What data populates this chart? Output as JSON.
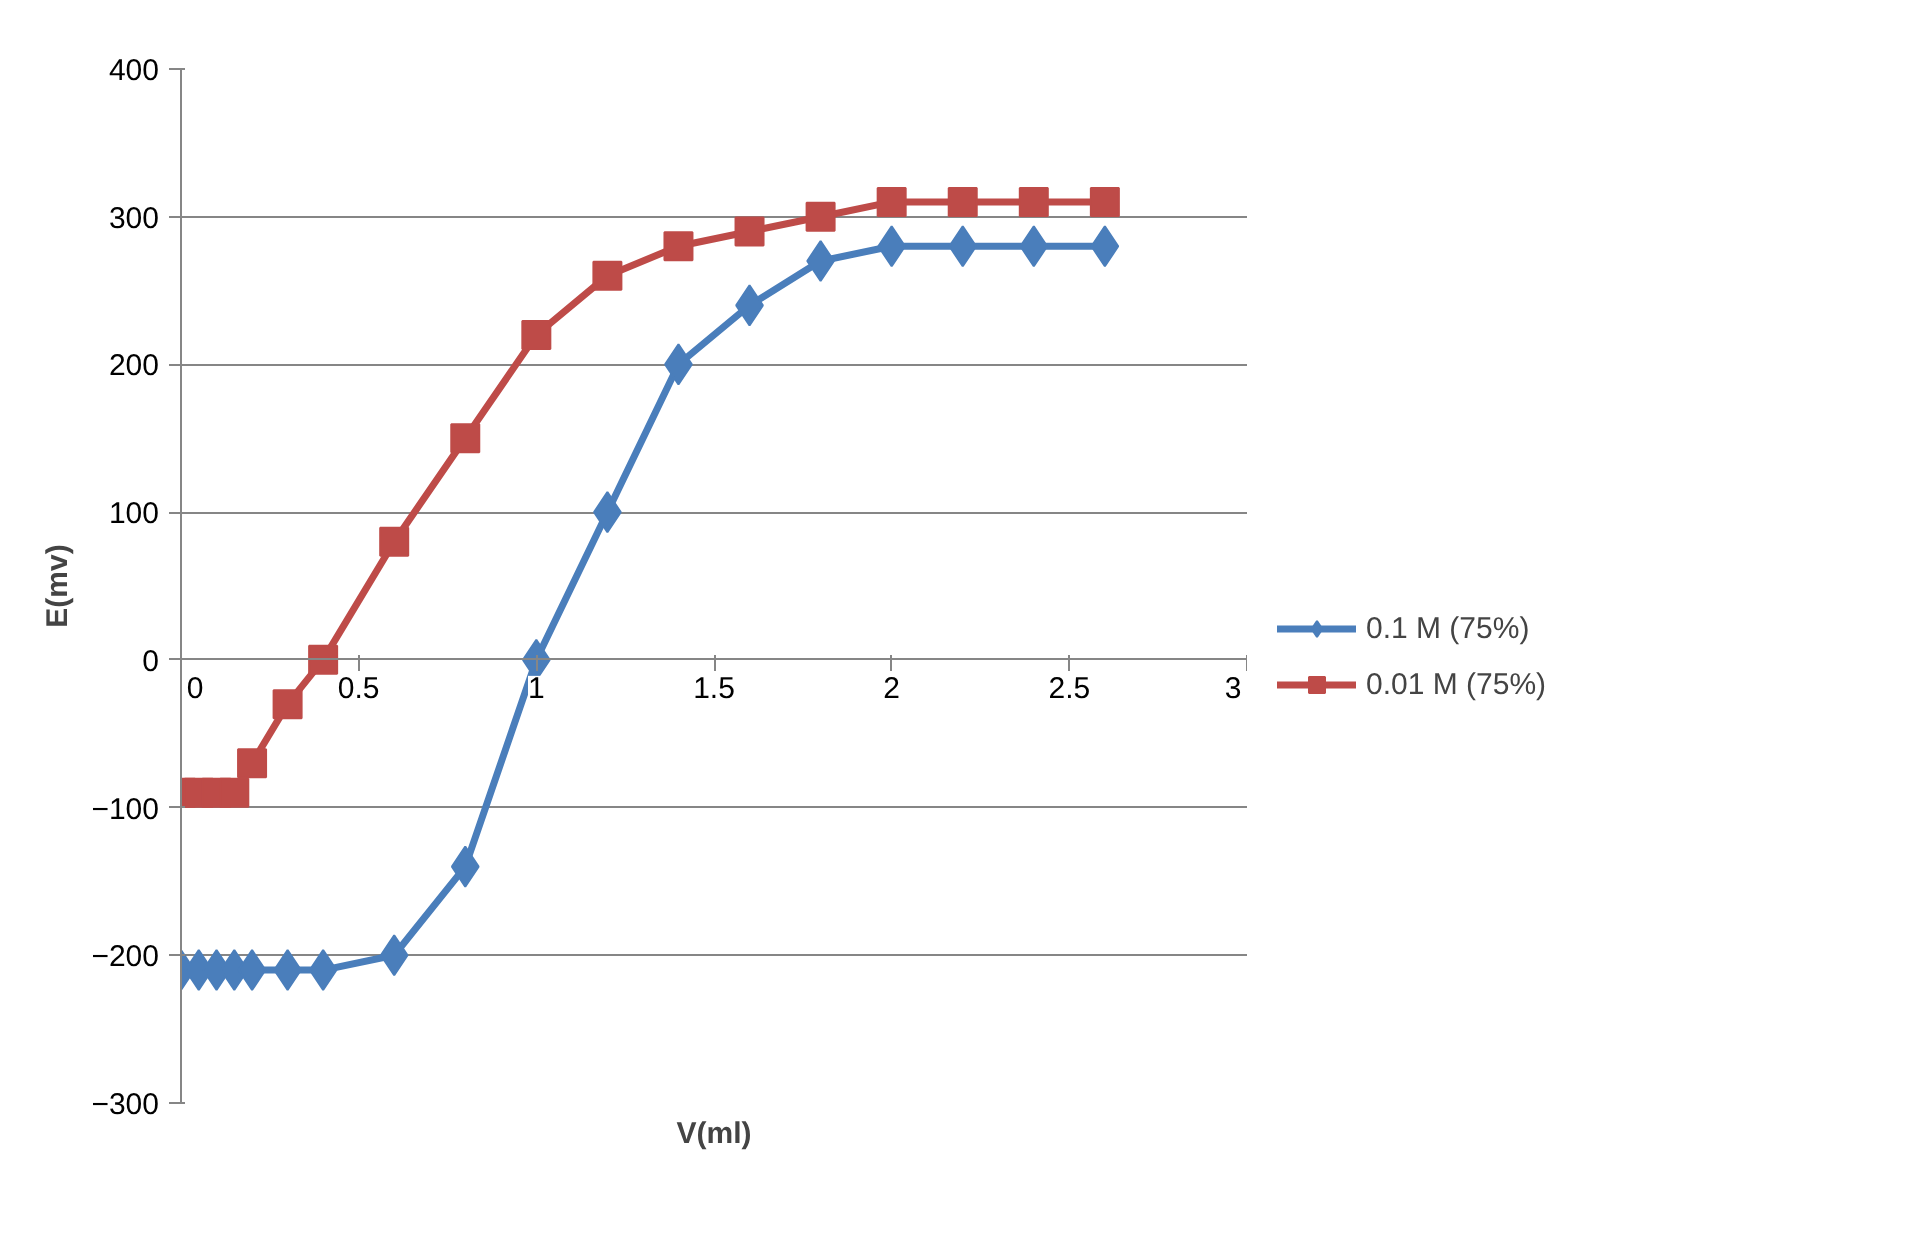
{
  "chart_data": {
    "type": "line",
    "xlabel": "V(ml)",
    "ylabel": "E(mv)",
    "x": [
      0,
      0.05,
      0.1,
      0.15,
      0.2,
      0.3,
      0.4,
      0.6,
      0.8,
      1.0,
      1.2,
      1.4,
      1.6,
      1.8,
      2.0,
      2.2,
      2.4,
      2.6
    ],
    "series": [
      {
        "name": "0.1 M (75%)",
        "color": "#4a7ebb",
        "marker": "diamond",
        "values": [
          -210,
          -210,
          -210,
          -210,
          -210,
          -210,
          -210,
          -200,
          -140,
          0,
          100,
          200,
          240,
          270,
          280,
          280,
          280,
          280
        ]
      },
      {
        "name": "0.01 M (75%)",
        "color": "#be4b48",
        "marker": "square",
        "values": [
          -90,
          -90,
          -90,
          -90,
          -70,
          -30,
          0,
          80,
          150,
          220,
          260,
          280,
          290,
          300,
          310,
          310,
          310,
          310
        ]
      }
    ],
    "xlim": [
      0,
      3
    ],
    "xticks": [
      0,
      0.5,
      1,
      1.5,
      2,
      2.5,
      3
    ],
    "ylim": [
      -300,
      400
    ],
    "yticks": [
      -300,
      -200,
      -100,
      0,
      100,
      200,
      300,
      400
    ],
    "grid": "y",
    "legend": "right"
  }
}
